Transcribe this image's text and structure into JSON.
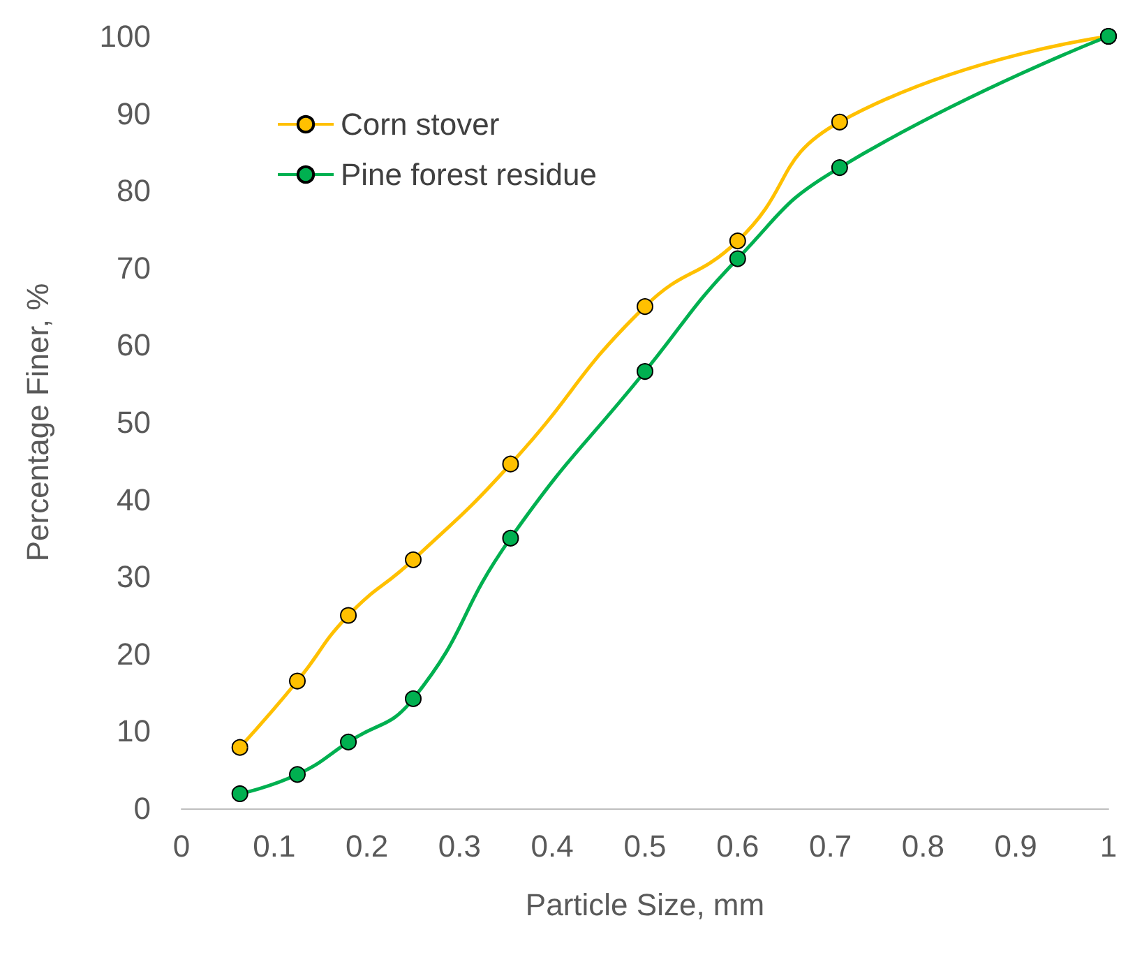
{
  "chart_data": {
    "type": "line",
    "xlabel": "Particle Size, mm",
    "ylabel": "Percentage Finer, %",
    "x": [
      0.063,
      0.125,
      0.18,
      0.25,
      0.355,
      0.5,
      0.6,
      0.71,
      1
    ],
    "series": [
      {
        "name": "Corn stover",
        "color": "#ffc000",
        "values": [
          7.9,
          16.5,
          25,
          32.2,
          44.6,
          65,
          73.5,
          88.9,
          100
        ]
      },
      {
        "name": "Pine forest residue",
        "color": "#00b050",
        "values": [
          1.9,
          4.4,
          8.6,
          14.2,
          35,
          56.6,
          71.2,
          83,
          100
        ]
      }
    ],
    "xlim": [
      0,
      1
    ],
    "xticks": [
      0,
      0.1,
      0.2,
      0.3,
      0.4,
      0.5,
      0.6,
      0.7,
      0.8,
      0.9,
      1
    ],
    "ylim": [
      0,
      100
    ],
    "yticks": [
      0,
      10,
      20,
      30,
      40,
      50,
      60,
      70,
      80,
      90,
      100
    ],
    "grid": false,
    "legend": "top left",
    "marker": "circle",
    "line_style": "solid"
  }
}
